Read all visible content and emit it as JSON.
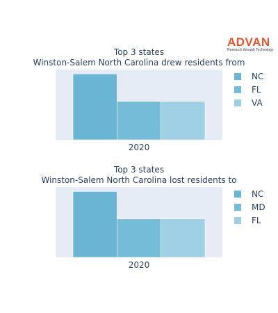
{
  "logo": {
    "word": "ADVAN",
    "tagline": "Research through Technology",
    "color": "#e8542b"
  },
  "chart_data": [
    {
      "type": "bar",
      "title": "Top 3 states",
      "subtitle": "Winston-Salem North Carolina drew residents from",
      "categories": [
        "2020"
      ],
      "series": [
        {
          "name": "NC",
          "values": [
            3
          ],
          "color": "#6ab5d4"
        },
        {
          "name": "FL",
          "values": [
            1.75
          ],
          "color": "#74bcd8"
        },
        {
          "name": "VA",
          "values": [
            1.75
          ],
          "color": "#9ecfe4"
        }
      ],
      "ylim": [
        0,
        3.2
      ],
      "plot_bg": "#e5ecf6",
      "legend": "right",
      "grid": false
    },
    {
      "type": "bar",
      "title": "Top 3 states",
      "subtitle": "Winston-Salem North Carolina lost residents to",
      "categories": [
        "2020"
      ],
      "series": [
        {
          "name": "NC",
          "values": [
            3
          ],
          "color": "#6ab5d4"
        },
        {
          "name": "MD",
          "values": [
            1.75
          ],
          "color": "#74bcd8"
        },
        {
          "name": "FL",
          "values": [
            1.75
          ],
          "color": "#9ecfe4"
        }
      ],
      "ylim": [
        0,
        3.2
      ],
      "plot_bg": "#e5ecf6",
      "legend": "right",
      "grid": false
    }
  ]
}
